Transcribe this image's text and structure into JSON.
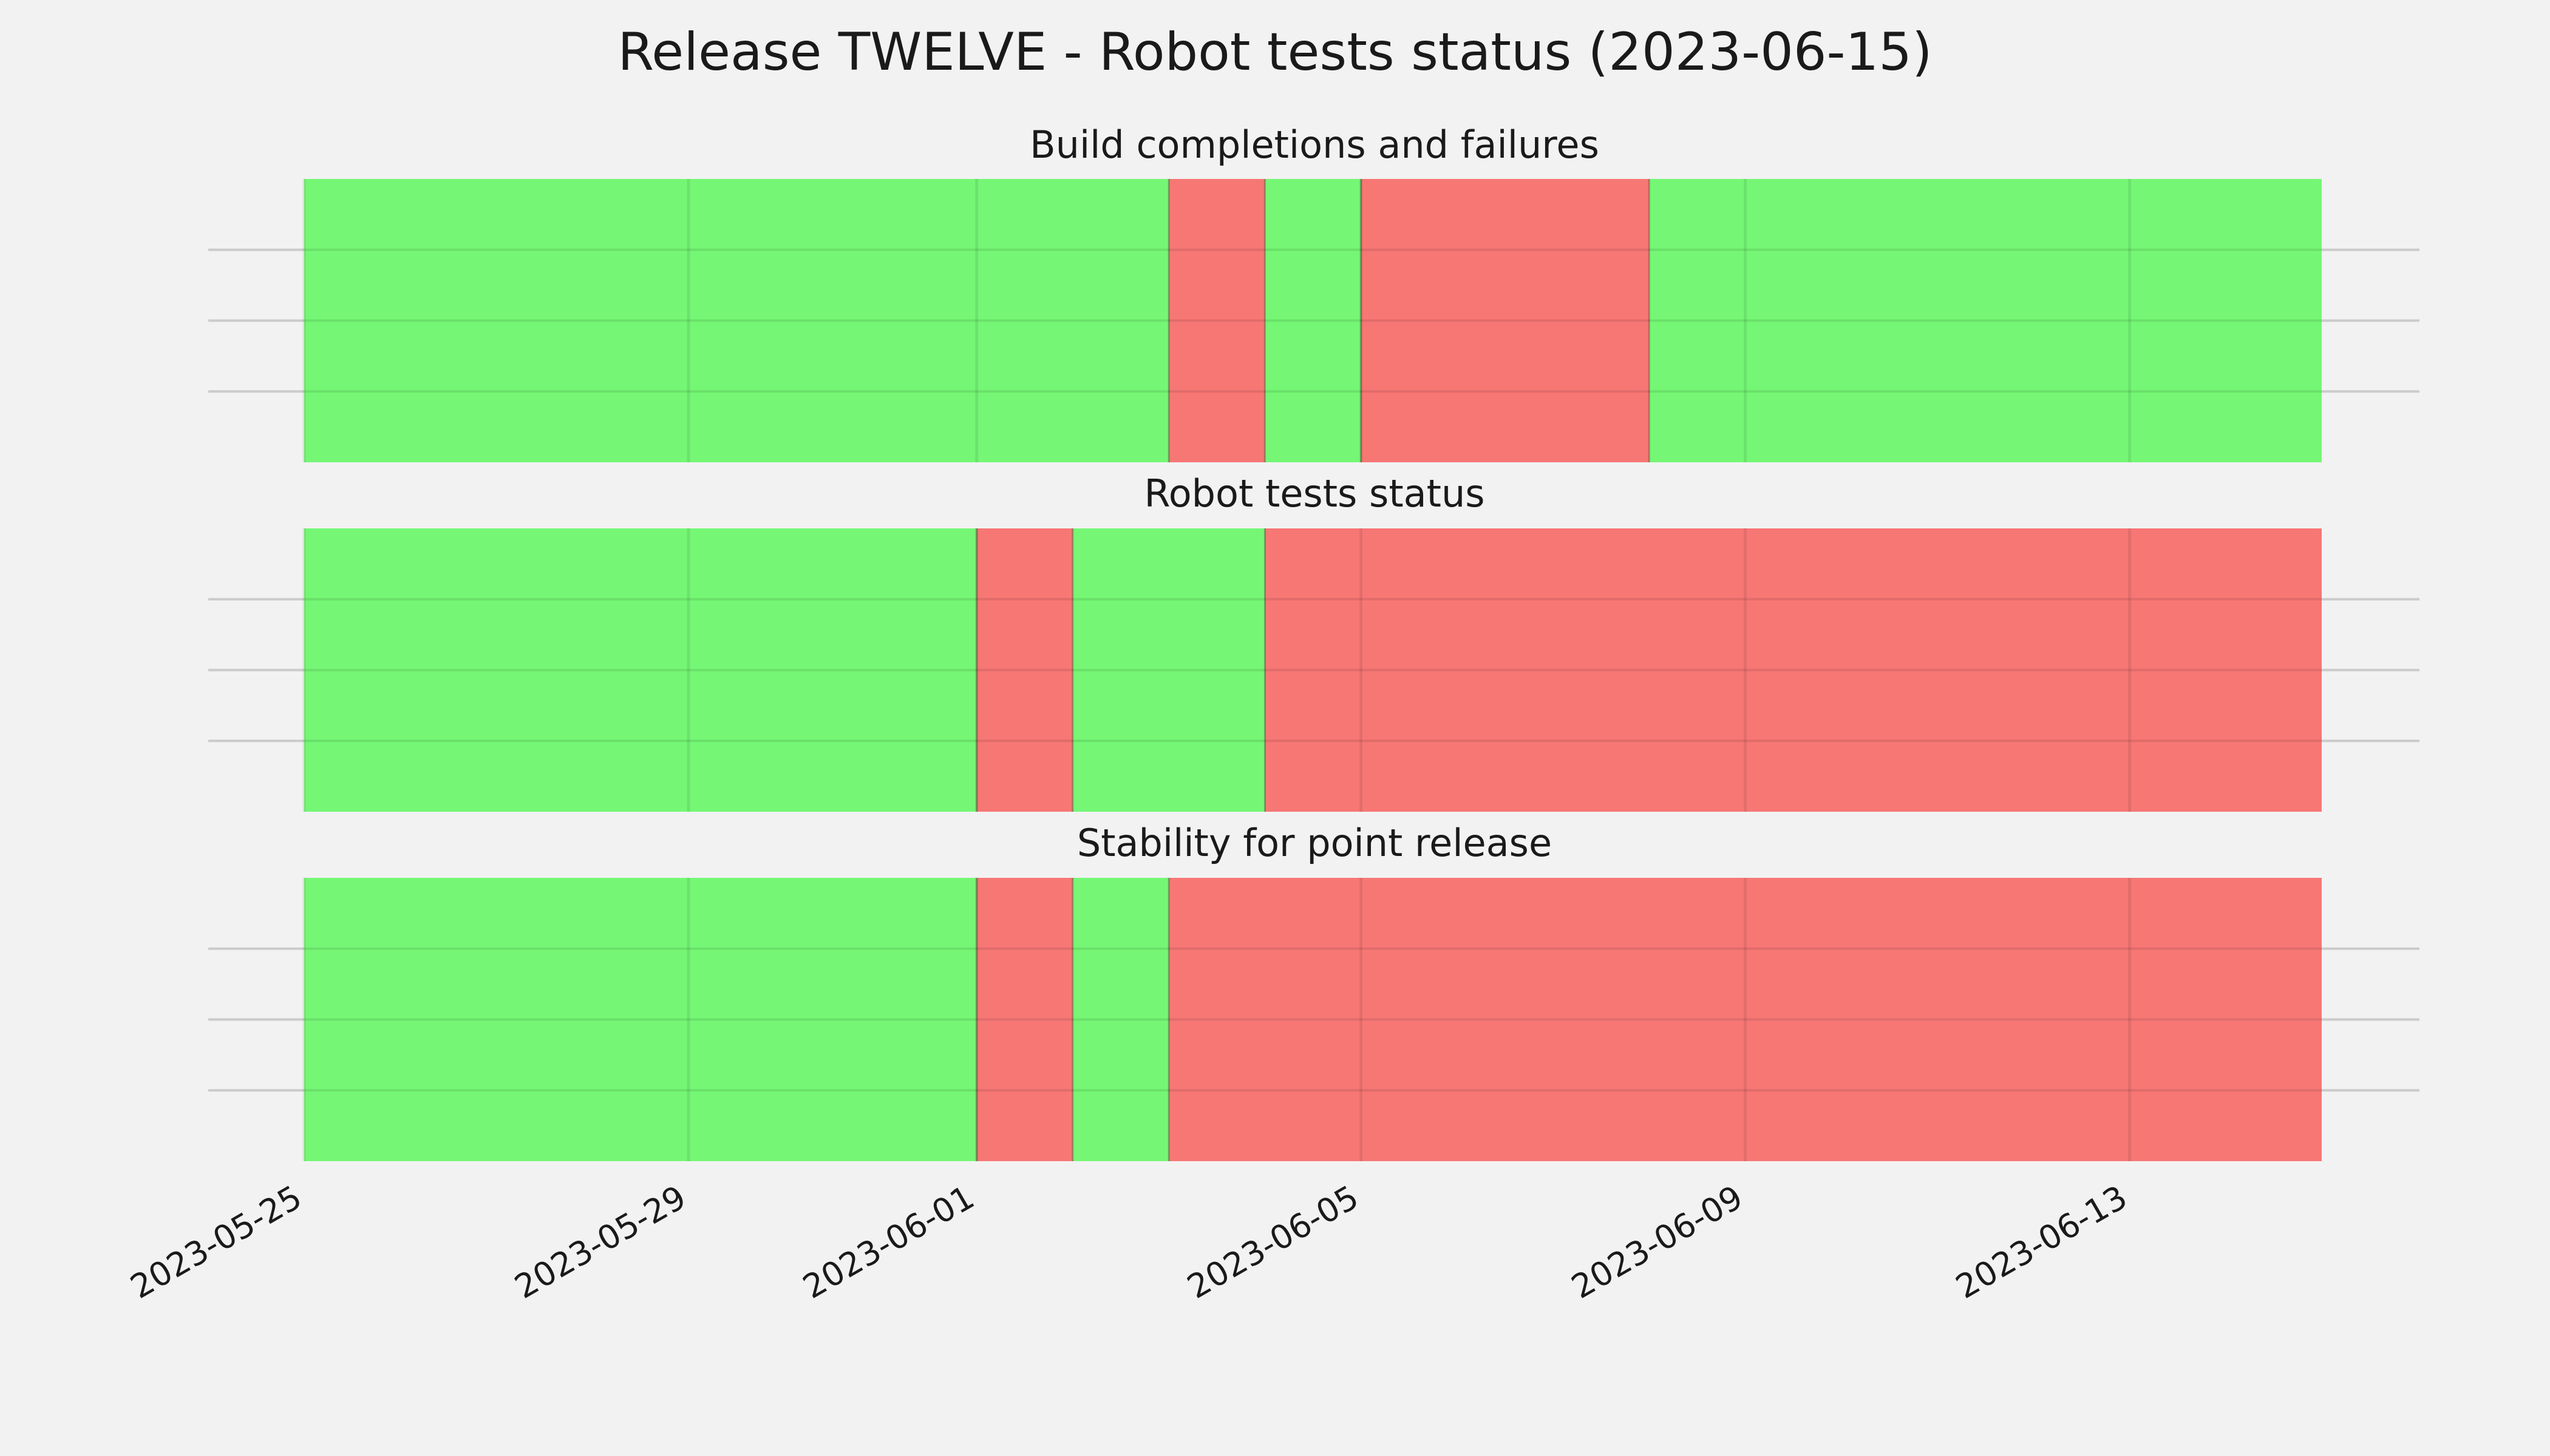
{
  "chart_data": {
    "type": "timeline",
    "title": "Release TWELVE - Robot tests status (2023-06-15)",
    "x_range": [
      "2023-05-25",
      "2023-06-15"
    ],
    "x_ticks": [
      "2023-05-25",
      "2023-05-29",
      "2023-06-01",
      "2023-06-05",
      "2023-06-09",
      "2023-06-13"
    ],
    "grid": true,
    "colors": {
      "pass": "#75f775",
      "fail": "#f77775"
    },
    "panels": [
      {
        "title": "Build completions and failures",
        "segments": [
          {
            "start": "2023-05-25",
            "end": "2023-06-03",
            "status": "pass"
          },
          {
            "start": "2023-06-03",
            "end": "2023-06-04",
            "status": "fail"
          },
          {
            "start": "2023-06-04",
            "end": "2023-06-05",
            "status": "pass"
          },
          {
            "start": "2023-06-05",
            "end": "2023-06-08",
            "status": "fail"
          },
          {
            "start": "2023-06-08",
            "end": "2023-06-15",
            "status": "pass"
          }
        ]
      },
      {
        "title": "Robot tests status",
        "segments": [
          {
            "start": "2023-05-25",
            "end": "2023-06-01",
            "status": "pass"
          },
          {
            "start": "2023-06-01",
            "end": "2023-06-02",
            "status": "fail"
          },
          {
            "start": "2023-06-02",
            "end": "2023-06-04",
            "status": "pass"
          },
          {
            "start": "2023-06-04",
            "end": "2023-06-15",
            "status": "fail"
          }
        ]
      },
      {
        "title": "Stability for point release",
        "segments": [
          {
            "start": "2023-05-25",
            "end": "2023-06-01",
            "status": "pass"
          },
          {
            "start": "2023-06-01",
            "end": "2023-06-02",
            "status": "fail"
          },
          {
            "start": "2023-06-02",
            "end": "2023-06-03",
            "status": "pass"
          },
          {
            "start": "2023-06-03",
            "end": "2023-06-15",
            "status": "fail"
          }
        ]
      }
    ]
  }
}
